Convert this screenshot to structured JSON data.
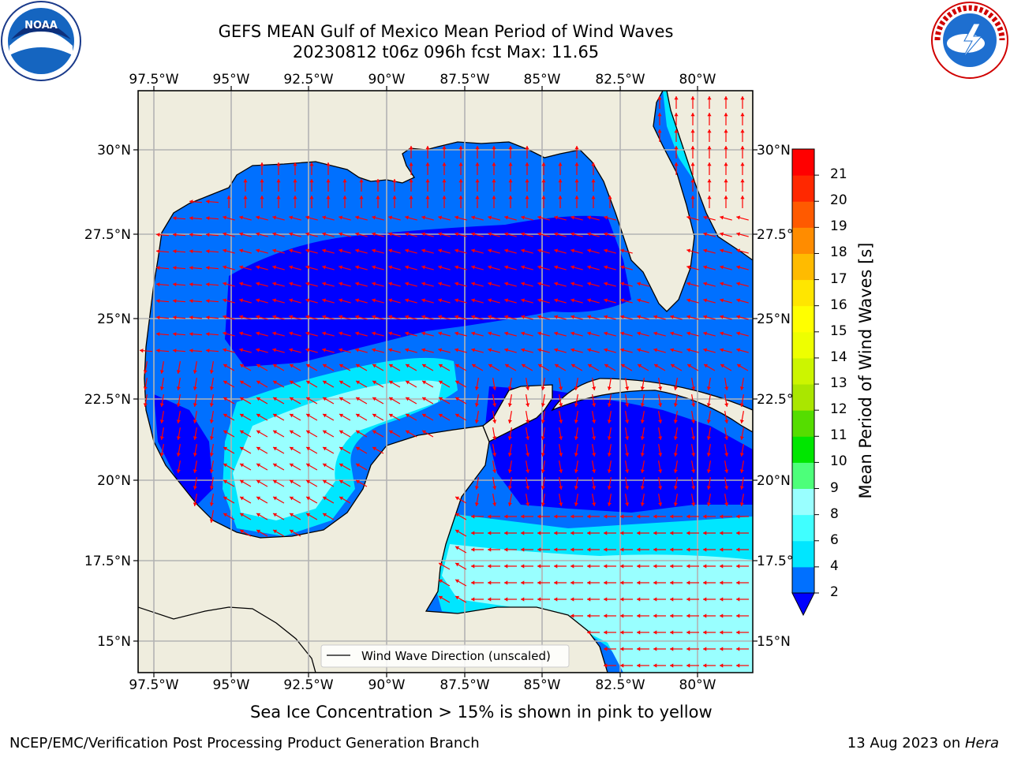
{
  "header": {
    "title_line1": "GEFS MEAN Gulf of Mexico Mean Period of Wind Waves",
    "title_line2": "20230812 t06z 096h fcst   Max: 11.65"
  },
  "logos": {
    "left": {
      "icon": "noaa-logo-icon",
      "text": "NOAA"
    },
    "right": {
      "icon": "nws-logo-icon",
      "text": "NATIONAL WEATHER SERVICE"
    }
  },
  "map": {
    "lon_ticks": [
      "97.5°W",
      "95°W",
      "92.5°W",
      "90°W",
      "87.5°W",
      "85°W",
      "82.5°W",
      "80°W"
    ],
    "lat_ticks_left": [
      "30°N",
      "27.5°N",
      "25°N",
      "22.5°N",
      "20°N",
      "17.5°N",
      "15°N"
    ],
    "lat_ticks_right": [
      "30°N",
      "27.5°N",
      "25°N",
      "22.5°N",
      "20°N",
      "17.5°N",
      "15°N"
    ],
    "legend_label": "Wind Wave Direction (unscaled)",
    "land_color": "#efedde",
    "arrow_color": "#ff0000"
  },
  "colorbar": {
    "title": "Mean Period of Wind Waves [s]",
    "levels": [
      "2",
      "4",
      "6",
      "8",
      "9",
      "10",
      "11",
      "12",
      "13",
      "14",
      "15",
      "16",
      "17",
      "18",
      "19",
      "20",
      "21"
    ],
    "colors": [
      "#0070ff",
      "#00e6ff",
      "#40ffff",
      "#99ffff",
      "#4dff7a",
      "#00e600",
      "#55dd00",
      "#aae600",
      "#ccf500",
      "#eeff00",
      "#ffff00",
      "#ffe600",
      "#ffbb00",
      "#ff8c00",
      "#ff5a00",
      "#ff2800",
      "#ff0000"
    ],
    "underflow_color": "#0000ff"
  },
  "notes": {
    "ice": "Sea Ice Concentration > 15% is shown in pink to yellow",
    "footer_left": "NCEP/EMC/Verification Post Processing Product Generation Branch",
    "footer_date": "13 Aug 2023 on ",
    "footer_host": "Hera"
  }
}
